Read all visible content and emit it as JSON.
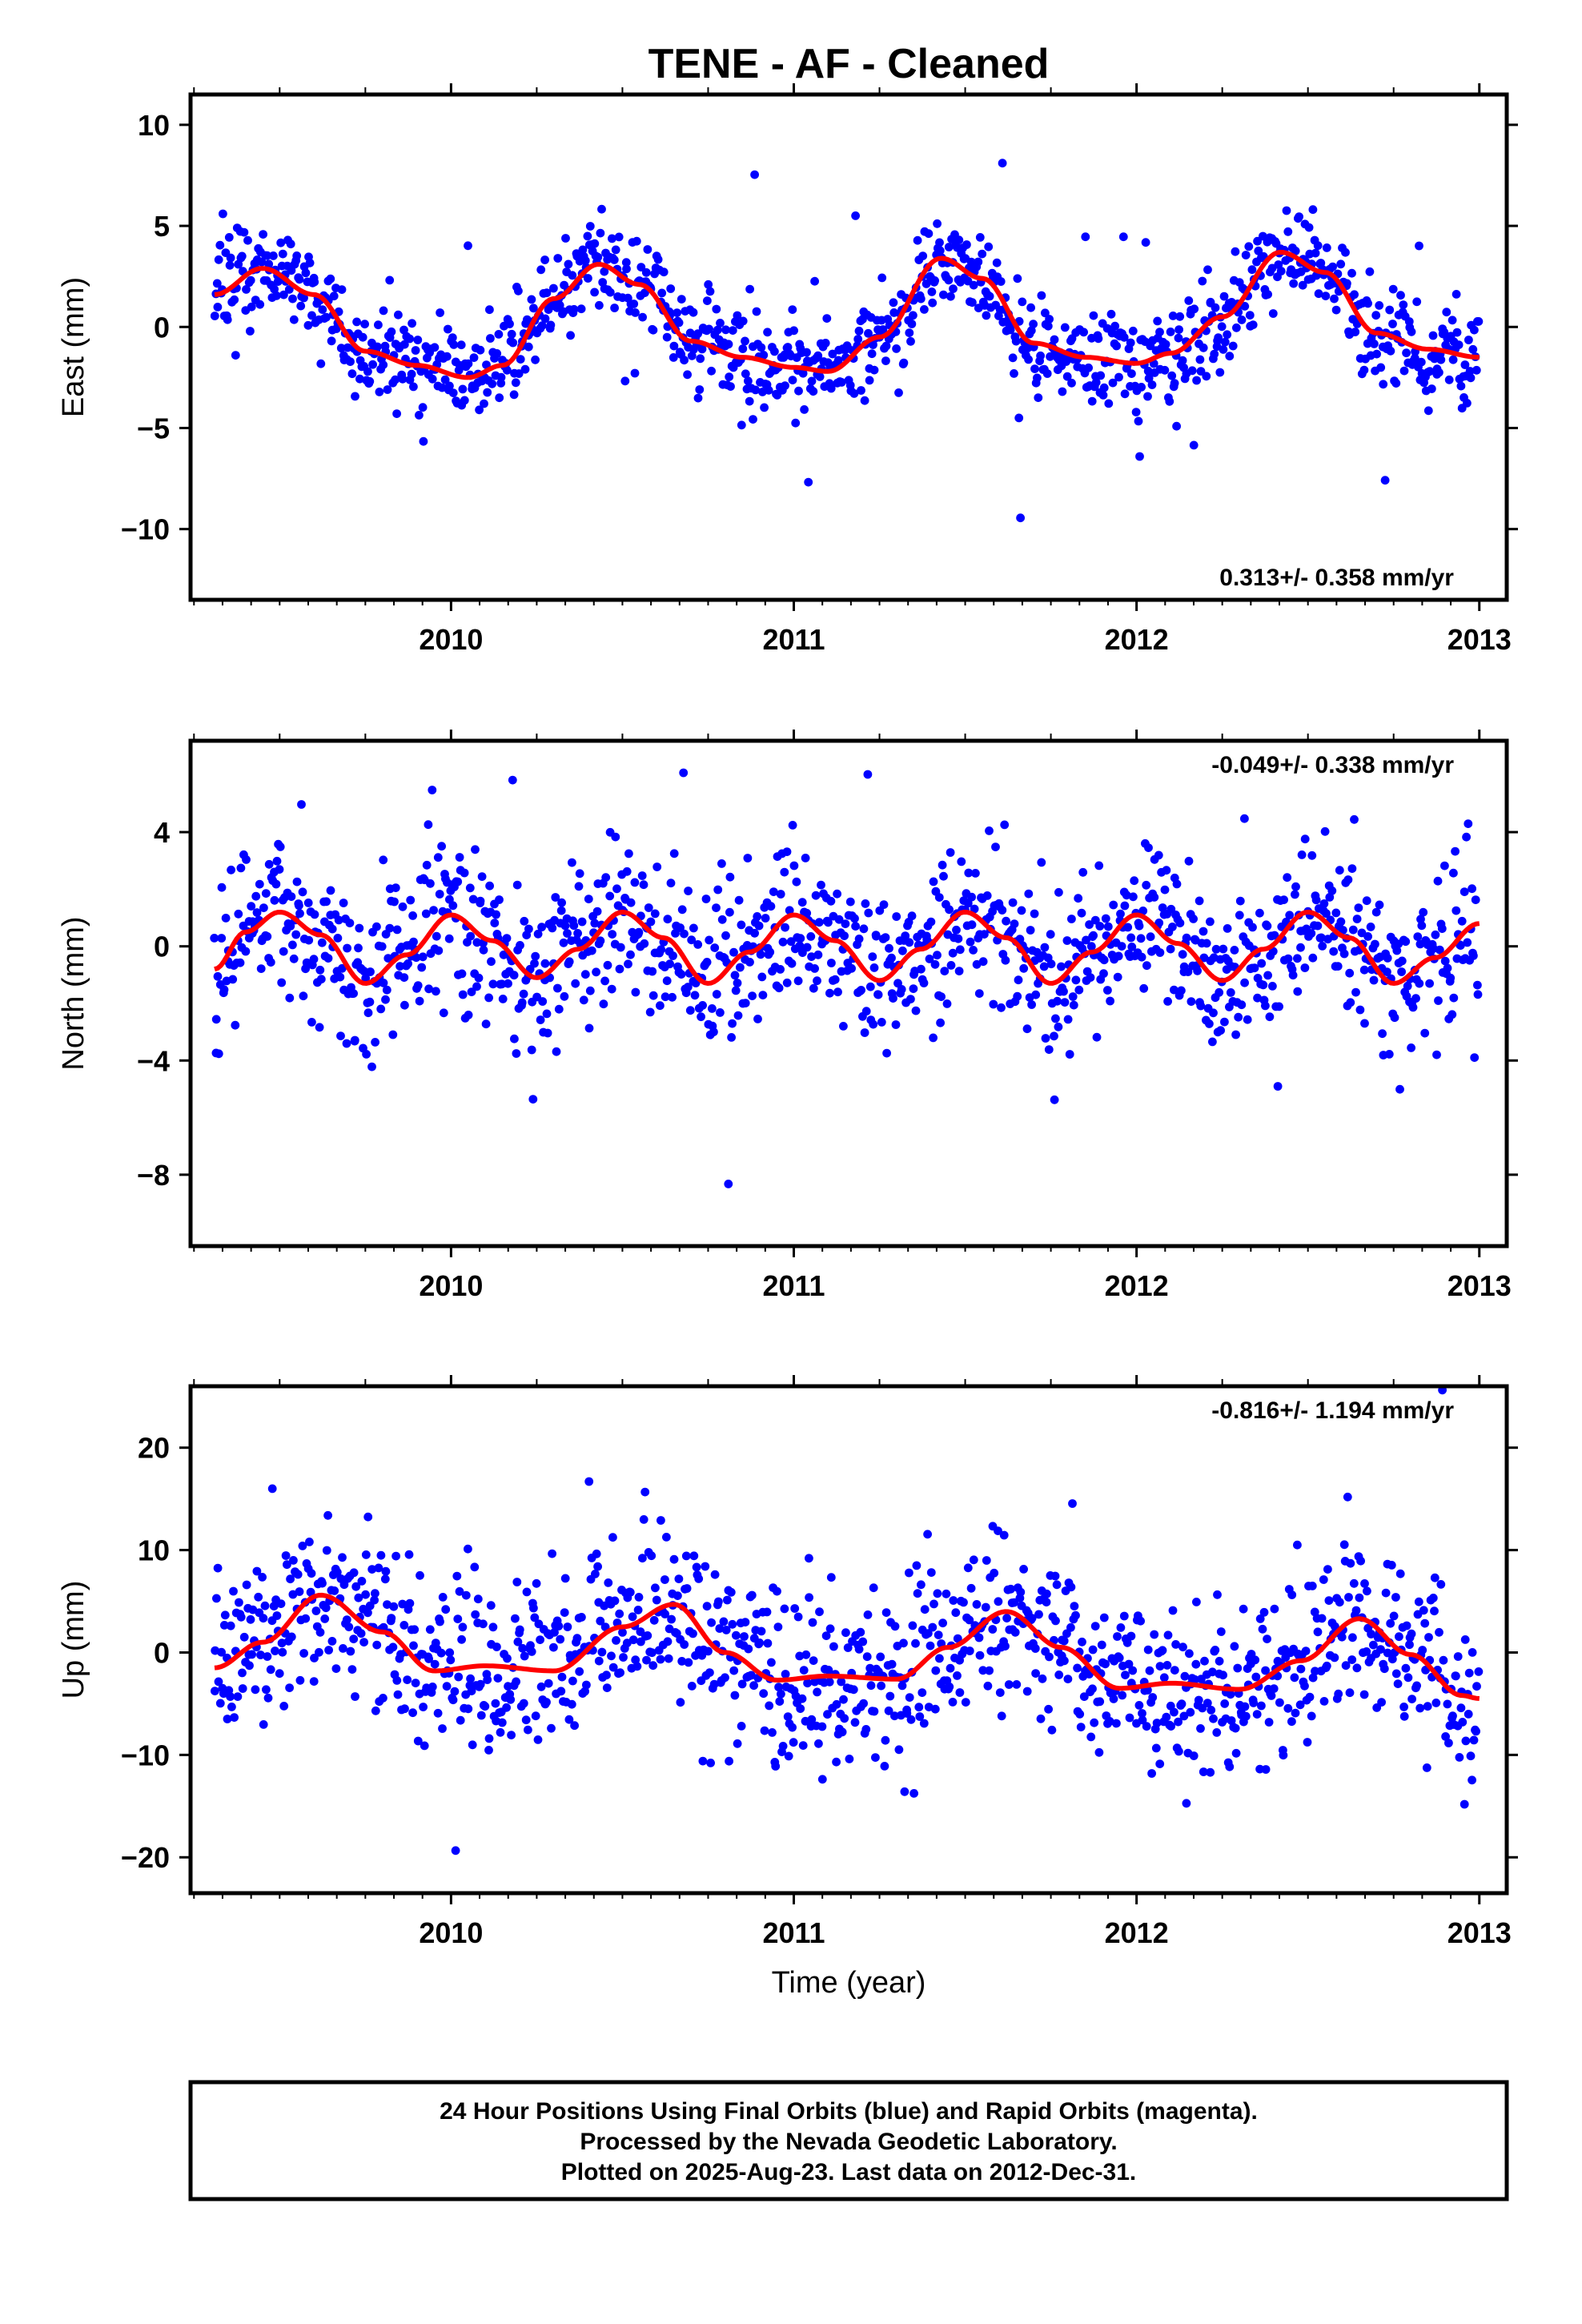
{
  "title": "TENE  - AF - Cleaned",
  "colors": {
    "points": "#0000ff",
    "fit": "#ff0000",
    "frame": "#000000"
  },
  "xlabel": "Time (year)",
  "footer": {
    "line1": "24 Hour Positions Using Final Orbits (blue) and Rapid Orbits (magenta).",
    "line2": "Processed by the Nevada Geodetic Laboratory.",
    "line3": "Plotted on 2025-Aug-23. Last data on 2012-Dec-31."
  },
  "chart_data": [
    {
      "type": "scatter",
      "ylabel": "East (mm)",
      "xlim": [
        2009.24,
        2013.08
      ],
      "ylim": [
        -13.5,
        11.5
      ],
      "xticks": [
        2010,
        2011,
        2012,
        2013
      ],
      "xtick_labels": [
        "2010",
        "2011",
        "2012",
        "2013"
      ],
      "yticks": [
        -10,
        -5,
        0,
        5,
        10
      ],
      "ytick_labels": [
        "−10",
        "−5",
        "0",
        "5",
        "10"
      ],
      "rate_text": "0.313+/- 0.358 mm/yr",
      "rate_position": "bottom-right",
      "series": [
        {
          "values": {
            "start": 2009.31,
            "end": 2012.997,
            "count": 1150,
            "noise": 1.15,
            "outlier_rate": 0.03,
            "outlier_scale": 3.5
          }
        }
      ],
      "fit": {
        "x": [
          2009.31,
          2009.45,
          2009.6,
          2009.75,
          2009.9,
          2010.05,
          2010.15,
          2010.3,
          2010.43,
          2010.55,
          2010.7,
          2010.85,
          2011.0,
          2011.1,
          2011.25,
          2011.43,
          2011.55,
          2011.7,
          2011.85,
          2012.0,
          2012.1,
          2012.25,
          2012.42,
          2012.55,
          2012.7,
          2012.85,
          2013.0
        ],
        "y": [
          1.6,
          2.9,
          1.6,
          -1.2,
          -1.9,
          -2.5,
          -1.9,
          1.4,
          3.1,
          2.1,
          -0.7,
          -1.5,
          -2.0,
          -2.2,
          -0.5,
          3.4,
          2.4,
          -0.8,
          -1.5,
          -1.8,
          -1.3,
          0.5,
          3.7,
          2.7,
          -0.3,
          -1.1,
          -1.5
        ]
      }
    },
    {
      "type": "scatter",
      "ylabel": "North (mm)",
      "xlim": [
        2009.24,
        2013.08
      ],
      "ylim": [
        -10.5,
        7.2
      ],
      "xticks": [
        2010,
        2011,
        2012,
        2013
      ],
      "xtick_labels": [
        "2010",
        "2011",
        "2012",
        "2013"
      ],
      "yticks": [
        -8,
        -4,
        0,
        4
      ],
      "ytick_labels": [
        "−8",
        "−4",
        "0",
        "4"
      ],
      "rate_text": "-0.049+/- 0.338 mm/yr",
      "rate_position": "top-right",
      "series": [
        {
          "values": {
            "start": 2009.31,
            "end": 2012.997,
            "count": 1150,
            "noise": 1.3,
            "outlier_rate": 0.025,
            "outlier_scale": 3.0
          }
        }
      ],
      "fit": {
        "x": [
          2009.31,
          2009.4,
          2009.5,
          2009.62,
          2009.75,
          2009.87,
          2010.0,
          2010.12,
          2010.25,
          2010.37,
          2010.5,
          2010.62,
          2010.75,
          2010.87,
          2011.0,
          2011.12,
          2011.25,
          2011.37,
          2011.5,
          2011.62,
          2011.75,
          2011.87,
          2012.0,
          2012.12,
          2012.25,
          2012.37,
          2012.5,
          2012.62,
          2012.75,
          2012.87,
          2013.0
        ],
        "y": [
          -0.8,
          0.5,
          1.2,
          0.4,
          -1.3,
          -0.3,
          1.1,
          0.2,
          -1.1,
          -0.1,
          1.2,
          0.3,
          -1.3,
          -0.2,
          1.1,
          0.2,
          -1.2,
          -0.1,
          1.2,
          0.3,
          -1.3,
          -0.2,
          1.1,
          0.1,
          -1.2,
          -0.1,
          1.2,
          0.3,
          -1.3,
          -0.4,
          0.8
        ]
      }
    },
    {
      "type": "scatter",
      "ylabel": "Up (mm)",
      "xlim": [
        2009.24,
        2013.08
      ],
      "ylim": [
        -23.5,
        26.0
      ],
      "xticks": [
        2010,
        2011,
        2012,
        2013
      ],
      "xtick_labels": [
        "2010",
        "2011",
        "2012",
        "2013"
      ],
      "yticks": [
        -20,
        -10,
        0,
        10,
        20
      ],
      "ytick_labels": [
        "−20",
        "−10",
        "0",
        "10",
        "20"
      ],
      "rate_text": "-0.816+/- 1.194 mm/yr",
      "rate_position": "top-right",
      "series": [
        {
          "values": {
            "start": 2009.31,
            "end": 2012.997,
            "count": 1150,
            "noise": 4.2,
            "outlier_rate": 0.025,
            "outlier_scale": 2.6
          }
        }
      ],
      "fit": {
        "x": [
          2009.31,
          2009.45,
          2009.62,
          2009.8,
          2009.95,
          2010.1,
          2010.3,
          2010.5,
          2010.65,
          2010.8,
          2010.95,
          2011.1,
          2011.3,
          2011.45,
          2011.62,
          2011.78,
          2011.95,
          2012.1,
          2012.3,
          2012.48,
          2012.65,
          2012.8,
          2012.95,
          2013.0
        ],
        "y": [
          -1.5,
          1.0,
          5.6,
          2.0,
          -1.8,
          -1.3,
          -1.8,
          2.5,
          4.7,
          0.0,
          -2.7,
          -2.3,
          -2.6,
          0.5,
          4.0,
          0.5,
          -3.5,
          -3.0,
          -3.6,
          -0.8,
          3.3,
          -0.2,
          -4.2,
          -4.5
        ]
      }
    }
  ]
}
